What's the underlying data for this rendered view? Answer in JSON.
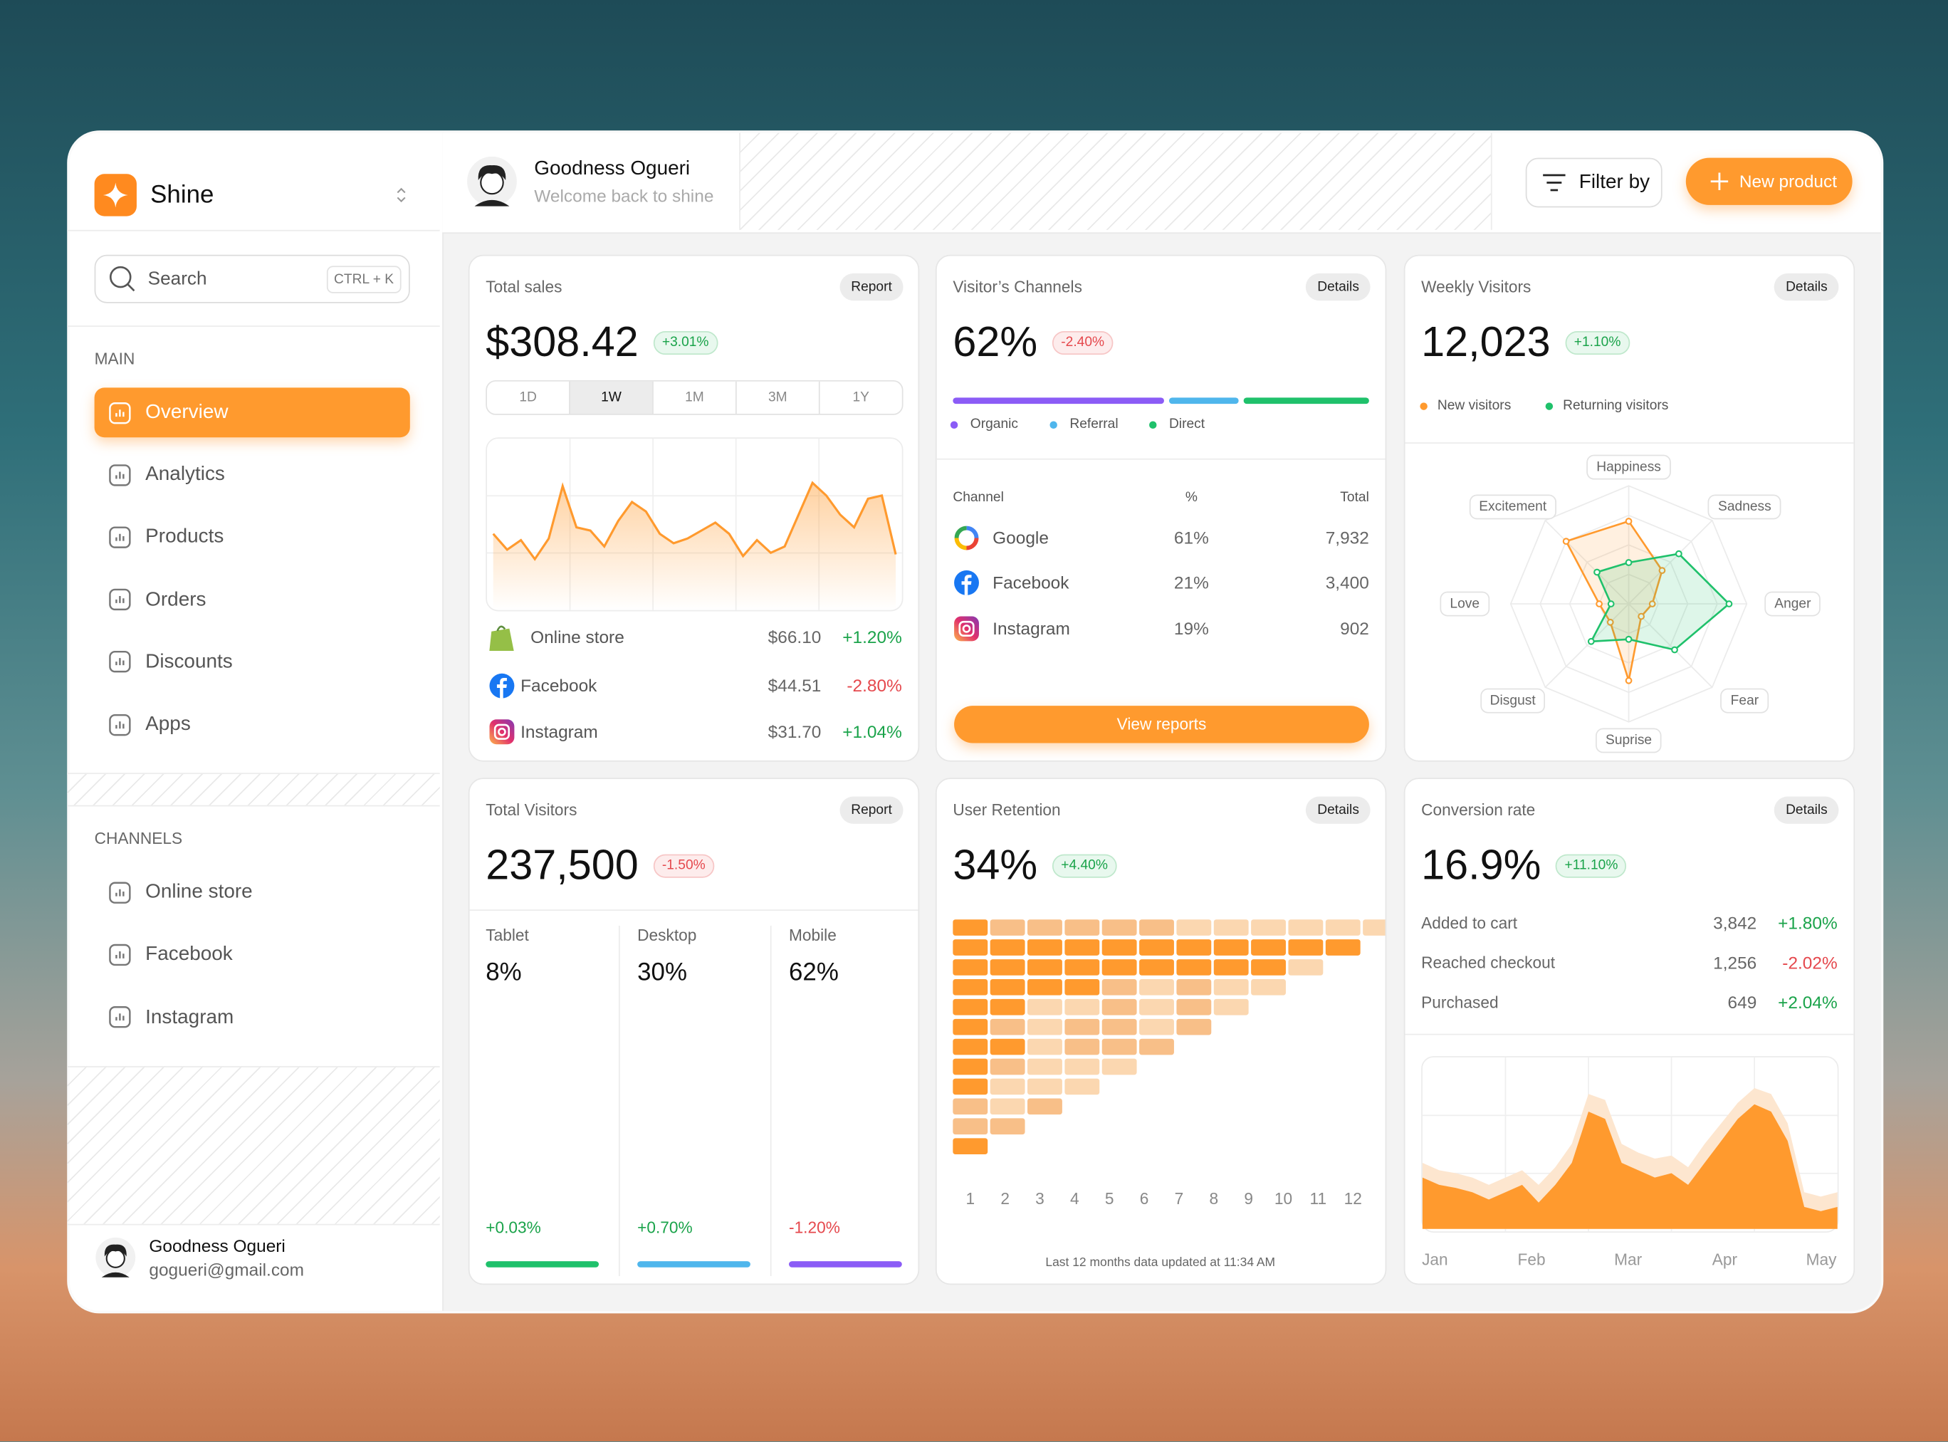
{
  "brand": "Shine",
  "search": {
    "placeholder": "Search",
    "shortcut": "CTRL + K"
  },
  "sidebar": {
    "main_label": "MAIN",
    "main_items": [
      "Overview",
      "Analytics",
      "Products",
      "Orders",
      "Discounts",
      "Apps"
    ],
    "active_item": 0,
    "channels_label": "CHANNELS",
    "channel_items": [
      "Online store",
      "Facebook",
      "Instagram"
    ]
  },
  "account": {
    "name": "Goodness Ogueri",
    "email": "gogueri@gmail.com"
  },
  "header": {
    "name": "Goodness Ogueri",
    "greeting": "Welcome back to shine",
    "filter_button": "Filter by",
    "new_button": "New product"
  },
  "total_sales": {
    "title": "Total sales",
    "button": "Report",
    "value": "$308.42",
    "change": "+3.01%",
    "ranges": [
      "1D",
      "1W",
      "1M",
      "3M",
      "1Y"
    ],
    "selected_range": 1,
    "chart": {
      "type": "area",
      "color": "#ff9a2e",
      "ylim": [
        0,
        100
      ],
      "values": [
        48,
        38,
        44,
        32,
        45,
        78,
        52,
        50,
        40,
        56,
        68,
        62,
        48,
        42,
        45,
        50,
        55,
        48,
        34,
        44,
        36,
        40,
        60,
        80,
        72,
        60,
        52,
        70,
        72,
        35
      ]
    },
    "sources": [
      {
        "name": "Online store",
        "amount": "$66.10",
        "change": "+1.20%"
      },
      {
        "name": "Facebook",
        "amount": "$44.51",
        "change": "-2.80%"
      },
      {
        "name": "Instagram",
        "amount": "$31.70",
        "change": "+1.04%"
      }
    ]
  },
  "visitor_channels": {
    "title": "Visitor’s Channels",
    "button": "Details",
    "value": "62%",
    "change": "-2.40%",
    "split": {
      "type": "stacked-bar",
      "series": [
        {
          "name": "Organic",
          "color": "#8b5cf6",
          "value": 52
        },
        {
          "name": "Referral",
          "color": "#4fb6ec",
          "value": 17
        },
        {
          "name": "Direct",
          "color": "#1fc16b",
          "value": 31
        }
      ]
    },
    "table": {
      "columns": [
        "Channel",
        "%",
        "Total"
      ],
      "rows": [
        [
          "Google",
          "61%",
          "7,932"
        ],
        [
          "Facebook",
          "21%",
          "3,400"
        ],
        [
          "Instagram",
          "19%",
          "902"
        ]
      ]
    },
    "reports_button": "View reports"
  },
  "weekly_visitors": {
    "title": "Weekly Visitors",
    "button": "Details",
    "value": "12,023",
    "change": "+1.10%",
    "chart": {
      "type": "radar",
      "rlim": [
        0,
        100
      ],
      "axes": [
        "Happiness",
        "Sadness",
        "Anger",
        "Fear",
        "Suprise",
        "Disgust",
        "Love",
        "Excitement"
      ],
      "series": [
        {
          "name": "New visitors",
          "color": "#ff9a2e",
          "values": [
            70,
            40,
            20,
            15,
            65,
            22,
            25,
            75
          ]
        },
        {
          "name": "Returning visitors",
          "color": "#1fc16b",
          "values": [
            35,
            60,
            85,
            55,
            30,
            45,
            15,
            38
          ]
        }
      ]
    }
  },
  "total_visitors": {
    "title": "Total Visitors",
    "button": "Report",
    "value": "237,500",
    "change": "-1.50%",
    "devices": [
      {
        "name": "Tablet",
        "share": "8%",
        "change": "+0.03%",
        "color": "#1fc16b"
      },
      {
        "name": "Desktop",
        "share": "30%",
        "change": "+0.70%",
        "color": "#4fb6ec"
      },
      {
        "name": "Mobile",
        "share": "62%",
        "change": "-1.20%",
        "color": "#8b5cf6"
      }
    ]
  },
  "user_retention": {
    "title": "User Retention",
    "button": "Details",
    "value": "34%",
    "change": "+4.40%",
    "chart": {
      "type": "heatmap",
      "columns": [
        1,
        2,
        3,
        4,
        5,
        6,
        7,
        8,
        9,
        10,
        11,
        12
      ],
      "colors": [
        "#fdeedd",
        "#fbd7b0",
        "#f8bf88",
        "#ff9a2e"
      ],
      "levels": [
        [
          3,
          2,
          2,
          2,
          2,
          2,
          1,
          1,
          1,
          1,
          1,
          1
        ],
        [
          3,
          3,
          3,
          3,
          3,
          3,
          3,
          3,
          3,
          3,
          3
        ],
        [
          3,
          3,
          3,
          3,
          3,
          3,
          3,
          3,
          3,
          1
        ],
        [
          3,
          3,
          3,
          3,
          2,
          1,
          2,
          1,
          1
        ],
        [
          3,
          3,
          1,
          1,
          2,
          1,
          2,
          1
        ],
        [
          3,
          2,
          1,
          2,
          2,
          1,
          2
        ],
        [
          3,
          3,
          1,
          2,
          2,
          2
        ],
        [
          3,
          2,
          1,
          1,
          1
        ],
        [
          3,
          1,
          1,
          1
        ],
        [
          2,
          1,
          2
        ],
        [
          2,
          2
        ],
        [
          3
        ]
      ]
    },
    "footnote": "Last 12 months data updated at 11:34 AM"
  },
  "conversion_rate": {
    "title": "Conversion rate",
    "button": "Details",
    "value": "16.9%",
    "change": "+11.10%",
    "steps": [
      {
        "name": "Added to cart",
        "count": "3,842",
        "change": "+1.80%"
      },
      {
        "name": "Reached checkout",
        "count": "1,256",
        "change": "-2.02%"
      },
      {
        "name": "Purchased",
        "count": "649",
        "change": "+2.04%"
      }
    ],
    "chart": {
      "type": "area",
      "ylim": [
        0,
        100
      ],
      "categories": [
        "Jan",
        "Feb",
        "Mar",
        "Apr",
        "May"
      ],
      "series": [
        {
          "color": "#fde6cf",
          "values": [
            45,
            40,
            38,
            35,
            30,
            35,
            40,
            30,
            42,
            58,
            92,
            88,
            58,
            52,
            48,
            50,
            42,
            58,
            72,
            86,
            96,
            92,
            72,
            25,
            22,
            25
          ]
        },
        {
          "color": "#ff9a2e",
          "values": [
            35,
            30,
            28,
            25,
            20,
            25,
            30,
            18,
            30,
            45,
            80,
            75,
            45,
            40,
            35,
            38,
            30,
            45,
            60,
            75,
            85,
            80,
            60,
            15,
            12,
            15
          ]
        }
      ]
    }
  }
}
